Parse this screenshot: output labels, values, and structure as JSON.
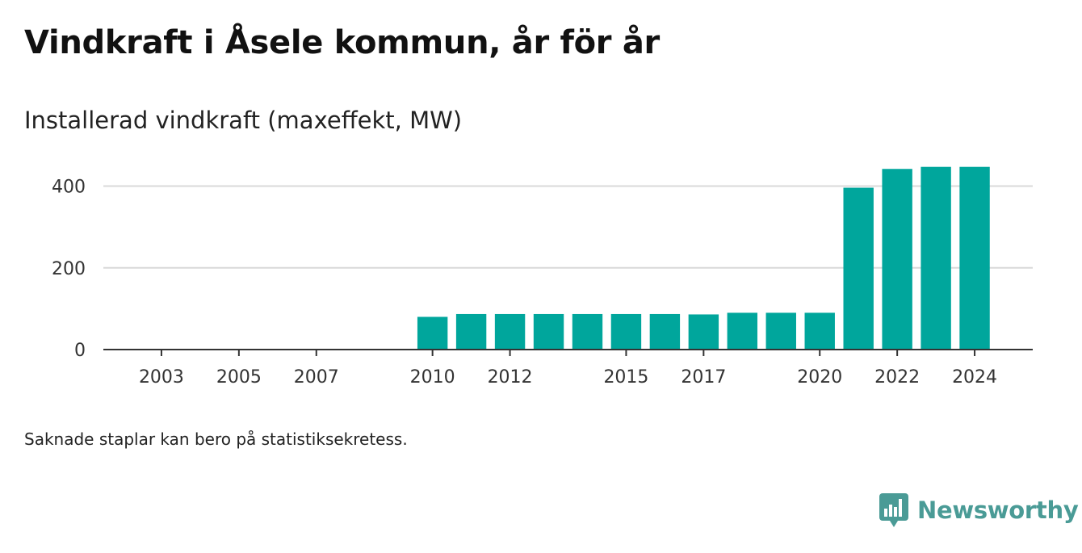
{
  "title": "Vindkraft i Åsele kommun, år för år",
  "subtitle": "Installerad vindkraft (maxeffekt, MW)",
  "note": "Saknade staplar kan bero på statistiksekretess.",
  "brand": {
    "name": "Newsworthy",
    "icon": "newsworthy-logo-icon",
    "color": "#4a9b96"
  },
  "chart_data": {
    "type": "bar",
    "title": "Vindkraft i Åsele kommun, år för år",
    "subtitle": "Installerad vindkraft (maxeffekt, MW)",
    "categories": [
      2010,
      2011,
      2012,
      2013,
      2014,
      2015,
      2016,
      2017,
      2018,
      2019,
      2020,
      2021,
      2022,
      2023,
      2024
    ],
    "values": [
      80,
      87,
      87,
      87,
      87,
      87,
      87,
      86,
      90,
      90,
      90,
      396,
      442,
      447,
      447
    ],
    "x_tick_labels": [
      "2003",
      "2005",
      "2007",
      "2010",
      "2012",
      "2015",
      "2017",
      "2020",
      "2022",
      "2024"
    ],
    "xlim": [
      2001.5,
      2025.5
    ],
    "y_ticks": [
      0,
      200,
      400
    ],
    "ylim": [
      0,
      480
    ],
    "grid": true,
    "bar_color": "#00a69c"
  }
}
